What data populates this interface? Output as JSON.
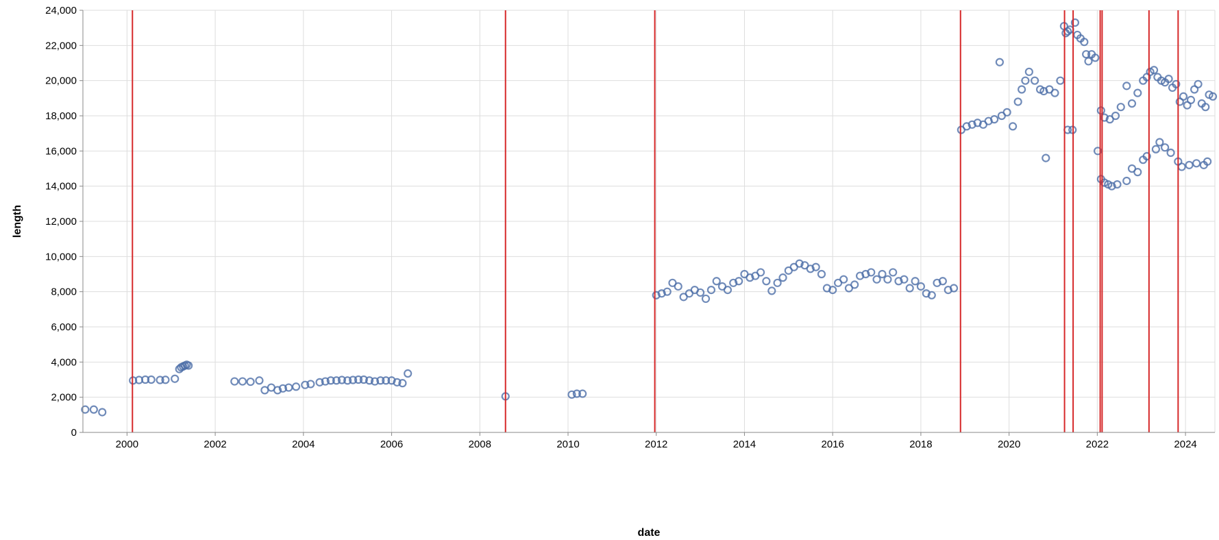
{
  "chart_data": {
    "type": "scatter",
    "xlabel": "date",
    "ylabel": "length",
    "x_range": [
      "1999-01-01",
      "2024-09-01"
    ],
    "y_range": [
      0,
      24000
    ],
    "x_ticks": [
      "2000",
      "2002",
      "2004",
      "2006",
      "2008",
      "2010",
      "2012",
      "2014",
      "2016",
      "2018",
      "2020",
      "2022",
      "2024"
    ],
    "y_ticks": [
      "0",
      "2,000",
      "4,000",
      "6,000",
      "8,000",
      "10,000",
      "12,000",
      "14,000",
      "16,000",
      "18,000",
      "20,000",
      "22,000",
      "24,000"
    ],
    "grid": true,
    "point_color": "#4c6ea8",
    "rule_color": "#d62728",
    "vertical_rules": [
      "2000-02-15",
      "2008-08-01",
      "2011-12-20",
      "2018-11-25",
      "2021-04-05",
      "2021-06-15",
      "2022-01-25",
      "2022-02-10",
      "2023-03-05",
      "2023-11-01"
    ],
    "points": [
      [
        "1999-01-20",
        1300
      ],
      [
        "1999-04-01",
        1300
      ],
      [
        "1999-06-10",
        1150
      ],
      [
        "2000-02-20",
        2950
      ],
      [
        "2000-04-10",
        2980
      ],
      [
        "2000-06-01",
        3000
      ],
      [
        "2000-07-20",
        3000
      ],
      [
        "2000-10-01",
        2980
      ],
      [
        "2000-11-15",
        2990
      ],
      [
        "2001-02-01",
        3050
      ],
      [
        "2001-03-10",
        3600
      ],
      [
        "2001-03-25",
        3700
      ],
      [
        "2001-04-10",
        3750
      ],
      [
        "2001-04-25",
        3800
      ],
      [
        "2001-05-10",
        3850
      ],
      [
        "2001-05-25",
        3800
      ],
      [
        "2002-06-10",
        2900
      ],
      [
        "2002-08-15",
        2900
      ],
      [
        "2002-10-20",
        2880
      ],
      [
        "2003-01-01",
        2950
      ],
      [
        "2003-02-15",
        2400
      ],
      [
        "2003-04-10",
        2550
      ],
      [
        "2003-06-01",
        2400
      ],
      [
        "2003-07-15",
        2500
      ],
      [
        "2003-09-01",
        2550
      ],
      [
        "2003-11-01",
        2600
      ],
      [
        "2004-01-15",
        2700
      ],
      [
        "2004-03-01",
        2750
      ],
      [
        "2004-05-15",
        2850
      ],
      [
        "2004-07-01",
        2900
      ],
      [
        "2004-08-15",
        2950
      ],
      [
        "2004-10-01",
        2950
      ],
      [
        "2004-11-15",
        2980
      ],
      [
        "2005-01-01",
        2950
      ],
      [
        "2005-02-15",
        2980
      ],
      [
        "2005-04-01",
        3000
      ],
      [
        "2005-05-15",
        3000
      ],
      [
        "2005-07-01",
        2950
      ],
      [
        "2005-08-15",
        2900
      ],
      [
        "2005-10-01",
        2950
      ],
      [
        "2005-11-15",
        2950
      ],
      [
        "2006-01-01",
        2950
      ],
      [
        "2006-02-15",
        2850
      ],
      [
        "2006-04-01",
        2800
      ],
      [
        "2006-05-15",
        3350
      ],
      [
        "2008-08-01",
        2050
      ],
      [
        "2010-02-01",
        2150
      ],
      [
        "2010-03-15",
        2200
      ],
      [
        "2010-05-01",
        2200
      ],
      [
        "2012-01-01",
        7800
      ],
      [
        "2012-02-15",
        7900
      ],
      [
        "2012-04-01",
        8000
      ],
      [
        "2012-05-15",
        8500
      ],
      [
        "2012-07-01",
        8300
      ],
      [
        "2012-08-15",
        7700
      ],
      [
        "2012-10-01",
        7900
      ],
      [
        "2012-11-15",
        8100
      ],
      [
        "2013-01-01",
        7950
      ],
      [
        "2013-02-15",
        7600
      ],
      [
        "2013-04-01",
        8100
      ],
      [
        "2013-05-15",
        8600
      ],
      [
        "2013-07-01",
        8300
      ],
      [
        "2013-08-15",
        8100
      ],
      [
        "2013-10-01",
        8500
      ],
      [
        "2013-11-15",
        8600
      ],
      [
        "2014-01-01",
        9000
      ],
      [
        "2014-02-15",
        8800
      ],
      [
        "2014-04-01",
        8900
      ],
      [
        "2014-05-15",
        9100
      ],
      [
        "2014-07-01",
        8600
      ],
      [
        "2014-08-15",
        8050
      ],
      [
        "2014-10-01",
        8500
      ],
      [
        "2014-11-15",
        8800
      ],
      [
        "2015-01-01",
        9200
      ],
      [
        "2015-02-15",
        9400
      ],
      [
        "2015-04-01",
        9600
      ],
      [
        "2015-05-15",
        9500
      ],
      [
        "2015-07-01",
        9300
      ],
      [
        "2015-08-15",
        9400
      ],
      [
        "2015-10-01",
        9000
      ],
      [
        "2015-11-15",
        8200
      ],
      [
        "2016-01-01",
        8100
      ],
      [
        "2016-02-15",
        8500
      ],
      [
        "2016-04-01",
        8700
      ],
      [
        "2016-05-15",
        8200
      ],
      [
        "2016-07-01",
        8400
      ],
      [
        "2016-08-15",
        8900
      ],
      [
        "2016-10-01",
        9000
      ],
      [
        "2016-11-15",
        9100
      ],
      [
        "2017-01-01",
        8700
      ],
      [
        "2017-02-15",
        9000
      ],
      [
        "2017-04-01",
        8700
      ],
      [
        "2017-05-15",
        9100
      ],
      [
        "2017-07-01",
        8600
      ],
      [
        "2017-08-15",
        8700
      ],
      [
        "2017-10-01",
        8200
      ],
      [
        "2017-11-15",
        8600
      ],
      [
        "2018-01-01",
        8300
      ],
      [
        "2018-02-15",
        7900
      ],
      [
        "2018-04-01",
        7800
      ],
      [
        "2018-05-15",
        8500
      ],
      [
        "2018-07-01",
        8600
      ],
      [
        "2018-08-15",
        8100
      ],
      [
        "2018-10-01",
        8200
      ],
      [
        "2018-12-01",
        17200
      ],
      [
        "2019-01-15",
        17400
      ],
      [
        "2019-03-01",
        17500
      ],
      [
        "2019-04-15",
        17600
      ],
      [
        "2019-06-01",
        17500
      ],
      [
        "2019-07-15",
        17700
      ],
      [
        "2019-09-01",
        17800
      ],
      [
        "2019-10-15",
        21050
      ],
      [
        "2019-11-01",
        18000
      ],
      [
        "2019-12-15",
        18200
      ],
      [
        "2020-02-01",
        17400
      ],
      [
        "2020-03-15",
        18800
      ],
      [
        "2020-04-15",
        19500
      ],
      [
        "2020-05-15",
        20000
      ],
      [
        "2020-06-15",
        20500
      ],
      [
        "2020-08-01",
        20000
      ],
      [
        "2020-09-15",
        19500
      ],
      [
        "2020-10-15",
        19400
      ],
      [
        "2020-11-01",
        15600
      ],
      [
        "2020-12-01",
        19500
      ],
      [
        "2021-01-15",
        19300
      ],
      [
        "2021-03-01",
        20000
      ],
      [
        "2021-04-01",
        23100
      ],
      [
        "2021-04-15",
        22700
      ],
      [
        "2021-05-01",
        22800
      ],
      [
        "2021-05-20",
        22900
      ],
      [
        "2021-06-10",
        17200
      ],
      [
        "2021-05-01",
        17200
      ],
      [
        "2021-07-01",
        23300
      ],
      [
        "2021-07-20",
        22600
      ],
      [
        "2021-08-15",
        22400
      ],
      [
        "2021-09-15",
        22200
      ],
      [
        "2021-10-01",
        21500
      ],
      [
        "2021-10-20",
        21100
      ],
      [
        "2021-11-15",
        21500
      ],
      [
        "2021-12-15",
        21300
      ],
      [
        "2022-01-05",
        16000
      ],
      [
        "2022-02-01",
        14400
      ],
      [
        "2022-03-01",
        14200
      ],
      [
        "2022-04-01",
        14100
      ],
      [
        "2022-05-01",
        14000
      ],
      [
        "2022-06-15",
        14100
      ],
      [
        "2022-09-01",
        14300
      ],
      [
        "2022-10-15",
        15000
      ],
      [
        "2022-12-01",
        14800
      ],
      [
        "2023-01-15",
        15500
      ],
      [
        "2023-02-15",
        15700
      ],
      [
        "2022-02-01",
        18300
      ],
      [
        "2022-03-01",
        17900
      ],
      [
        "2022-04-15",
        17800
      ],
      [
        "2022-06-01",
        18000
      ],
      [
        "2022-07-15",
        18500
      ],
      [
        "2022-09-01",
        19700
      ],
      [
        "2022-10-15",
        18700
      ],
      [
        "2022-12-01",
        19300
      ],
      [
        "2023-01-15",
        20000
      ],
      [
        "2023-02-15",
        20200
      ],
      [
        "2023-03-15",
        20500
      ],
      [
        "2023-04-15",
        20600
      ],
      [
        "2023-05-15",
        20200
      ],
      [
        "2023-06-15",
        20000
      ],
      [
        "2023-07-15",
        19900
      ],
      [
        "2023-08-15",
        20100
      ],
      [
        "2023-09-15",
        19600
      ],
      [
        "2023-10-15",
        19800
      ],
      [
        "2023-05-01",
        16100
      ],
      [
        "2023-06-01",
        16500
      ],
      [
        "2023-07-15",
        16200
      ],
      [
        "2023-09-01",
        15900
      ],
      [
        "2023-11-01",
        15400
      ],
      [
        "2023-12-01",
        15100
      ],
      [
        "2024-02-01",
        15200
      ],
      [
        "2024-04-01",
        15300
      ],
      [
        "2024-06-01",
        15200
      ],
      [
        "2024-07-01",
        15400
      ],
      [
        "2023-11-15",
        18800
      ],
      [
        "2023-12-15",
        19100
      ],
      [
        "2024-01-15",
        18600
      ],
      [
        "2024-02-15",
        18900
      ],
      [
        "2024-03-15",
        19500
      ],
      [
        "2024-04-15",
        19800
      ],
      [
        "2024-05-15",
        18700
      ],
      [
        "2024-06-15",
        18500
      ],
      [
        "2024-07-15",
        19200
      ],
      [
        "2024-08-15",
        19100
      ]
    ]
  }
}
